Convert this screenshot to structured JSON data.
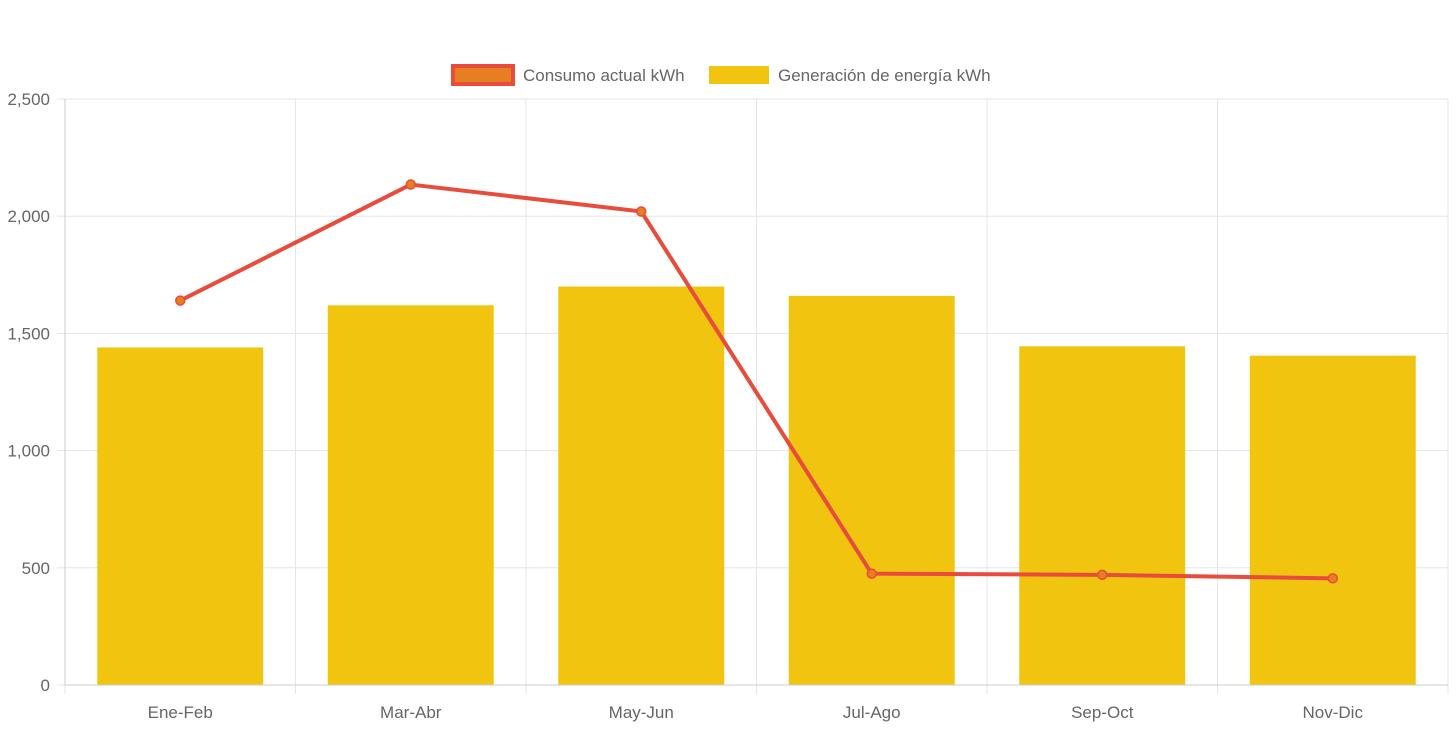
{
  "chart_data": {
    "type": "bar",
    "categories": [
      "Ene-Feb",
      "Mar-Abr",
      "May-Jun",
      "Jul-Ago",
      "Sep-Oct",
      "Nov-Dic"
    ],
    "series": [
      {
        "name": "Consumo actual kWh",
        "type": "line",
        "values": [
          1640,
          2135,
          2020,
          475,
          470,
          455
        ],
        "color": "#e74c3c",
        "point_fill": "#e67e22"
      },
      {
        "name": "Generación de energía kWh",
        "type": "bar",
        "values": [
          1440,
          1620,
          1700,
          1660,
          1445,
          1405
        ],
        "color": "#f1c40f"
      }
    ],
    "ylim": [
      0,
      2500
    ],
    "y_ticks": [
      "0",
      "500",
      "1,000",
      "1,500",
      "2,000",
      "2,500"
    ],
    "y_tick_values": [
      0,
      500,
      1000,
      1500,
      2000,
      2500
    ],
    "grid": true,
    "legend_position": "top-center",
    "grid_color": "#e5e5e5",
    "axis_color": "#cccccc"
  }
}
